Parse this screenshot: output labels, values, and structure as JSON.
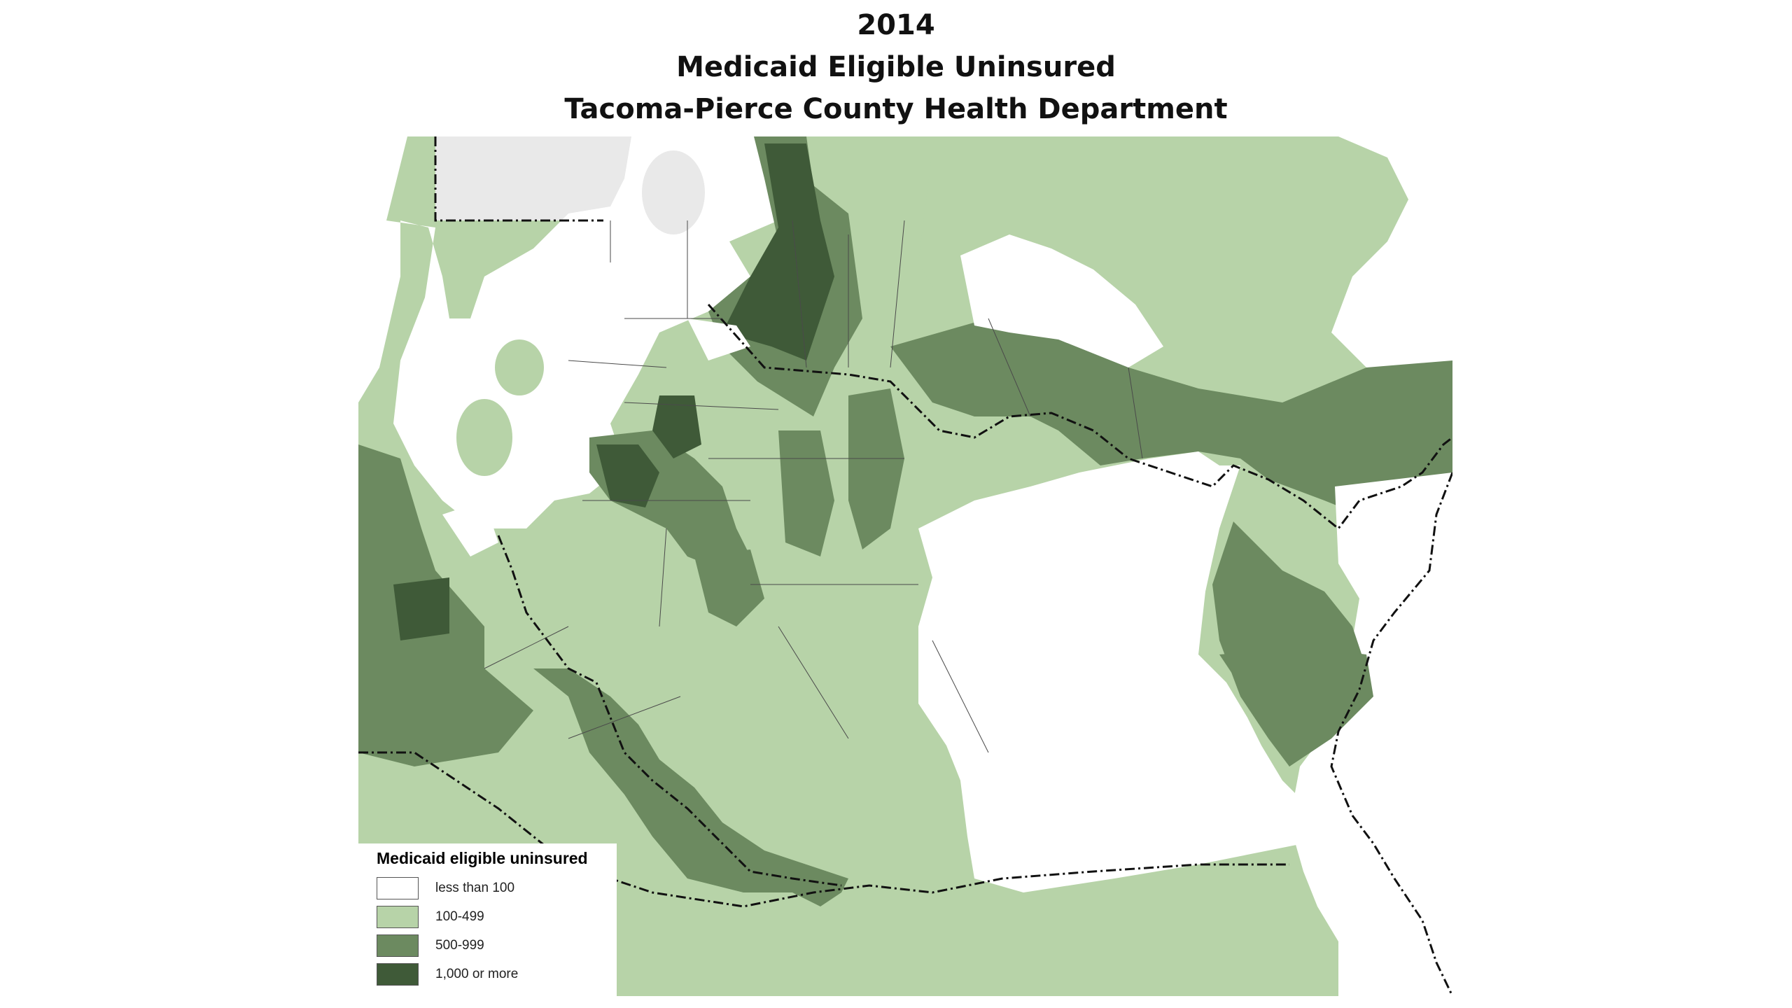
{
  "title": {
    "year": "2014",
    "line2": "Medicaid Eligible Uninsured",
    "line3": "Tacoma-Pierce County Health Department"
  },
  "legend": {
    "title": "Medicaid eligible uninsured",
    "items": [
      {
        "label": "less than 100",
        "color": "#ffffff"
      },
      {
        "label": "100-499",
        "color": "#b7d3a8"
      },
      {
        "label": "500-999",
        "color": "#6c8a60"
      },
      {
        "label": "1,000 or more",
        "color": "#3f5a38"
      }
    ]
  },
  "colors": {
    "water": "#ffffff",
    "outside_county": "#e9e9e9",
    "boundary_line": "#111111"
  }
}
